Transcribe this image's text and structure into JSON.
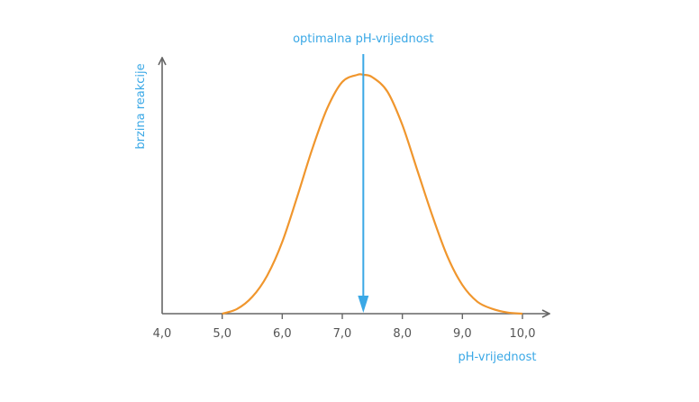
{
  "chart_data": {
    "type": "line",
    "title": "",
    "xlabel": "pH-vrijednost",
    "ylabel": "brzina reakcije",
    "xlim": [
      4.0,
      10.0
    ],
    "ylim": [
      0,
      1
    ],
    "x_ticks": [
      4.0,
      5.0,
      6.0,
      7.0,
      8.0,
      9.0,
      10.0
    ],
    "x_tick_labels": [
      "4,0",
      "5,0",
      "6,0",
      "7,0",
      "8,0",
      "9,0",
      "10,0"
    ],
    "y_ticks_shown": false,
    "grid": false,
    "legend": "none",
    "series": [
      {
        "color": "#f0962d",
        "x": [
          5.0,
          5.25,
          5.5,
          5.75,
          6.0,
          6.25,
          6.5,
          6.75,
          7.0,
          7.25,
          7.35,
          7.5,
          7.75,
          8.0,
          8.25,
          8.5,
          8.75,
          9.0,
          9.25,
          9.5,
          9.75,
          10.0
        ],
        "y": [
          0.0,
          0.02,
          0.07,
          0.16,
          0.3,
          0.49,
          0.69,
          0.86,
          0.97,
          1.0,
          1.0,
          0.99,
          0.93,
          0.79,
          0.6,
          0.41,
          0.24,
          0.12,
          0.05,
          0.02,
          0.005,
          0.0
        ]
      }
    ],
    "annotations": [
      {
        "text": "optimalna pH-vrijednost",
        "x": 7.35,
        "kind": "vertical-arrow",
        "color": "#3aa8e6"
      }
    ],
    "axis_color": "#666666"
  }
}
